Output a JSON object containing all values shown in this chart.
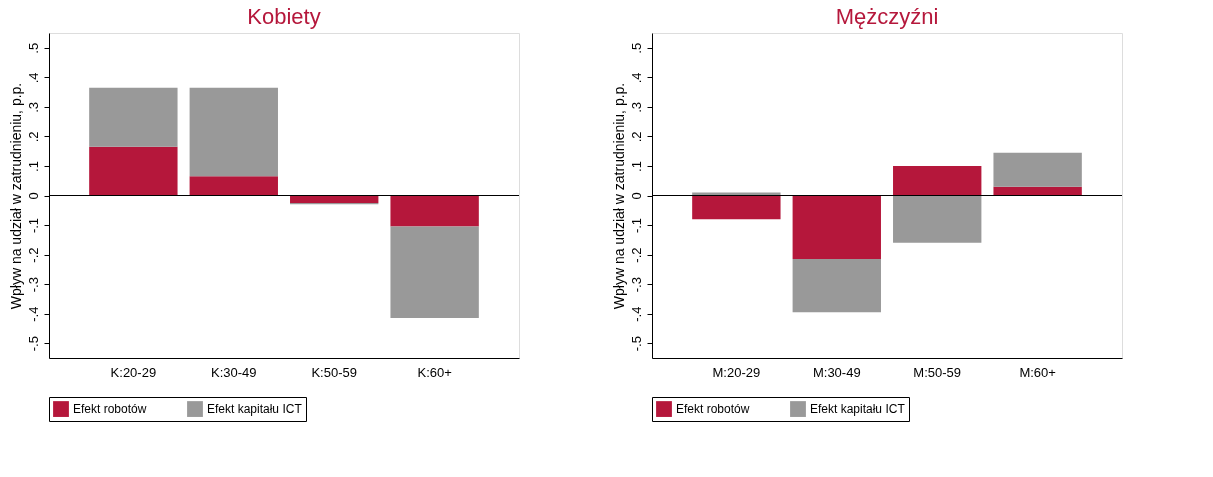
{
  "chart_data": [
    {
      "type": "bar",
      "stacked": true,
      "title": "Kobiety",
      "ylabel": "Wpływ na udział w zatrudnieniu, p.p.",
      "categories": [
        "K:20-29",
        "K:30-49",
        "K:50-59",
        "K:60+"
      ],
      "series": [
        {
          "name": "Efekt robotów",
          "color": "#b5173b",
          "values": [
            0.165,
            0.065,
            -0.025,
            -0.105
          ]
        },
        {
          "name": "Efekt kapitału ICT",
          "color": "#999999",
          "values": [
            0.2,
            0.3,
            -0.005,
            -0.31
          ]
        }
      ],
      "ylim": [
        -0.55,
        0.55
      ],
      "yticks": [
        {
          "value": -0.5,
          "label": "-.5"
        },
        {
          "value": -0.4,
          "label": "-.4"
        },
        {
          "value": -0.3,
          "label": "-.3"
        },
        {
          "value": -0.2,
          "label": "-.2"
        },
        {
          "value": -0.1,
          "label": "-.1"
        },
        0,
        {
          "value": 0.1,
          "label": ".1"
        },
        {
          "value": 0.2,
          "label": ".2"
        },
        {
          "value": 0.3,
          "label": ".3"
        },
        {
          "value": 0.4,
          "label": ".4"
        },
        {
          "value": 0.5,
          "label": ".5"
        }
      ],
      "ref_lines": [
        {
          "axis": "y",
          "value": 0,
          "color": "#000000"
        }
      ],
      "grid": false,
      "legend": "bottom"
    },
    {
      "type": "bar",
      "stacked": true,
      "title": "Mężczyźni",
      "ylabel": "Wpływ na udział w zatrudnieniu, p.p.",
      "categories": [
        "M:20-29",
        "M:30-49",
        "M:50-59",
        "M:60+"
      ],
      "series": [
        {
          "name": "Efekt robotów",
          "color": "#b5173b",
          "values": [
            -0.08,
            -0.215,
            0.1,
            0.03
          ]
        },
        {
          "name": "Efekt kapitału ICT",
          "color": "#999999",
          "values": [
            0.01,
            -0.18,
            -0.16,
            0.115
          ]
        }
      ],
      "ylim": [
        -0.55,
        0.55
      ],
      "yticks": [
        {
          "value": -0.5,
          "label": "-.5"
        },
        {
          "value": -0.4,
          "label": "-.4"
        },
        {
          "value": -0.3,
          "label": "-.3"
        },
        {
          "value": -0.2,
          "label": "-.2"
        },
        {
          "value": -0.1,
          "label": "-.1"
        },
        0,
        {
          "value": 0.1,
          "label": ".1"
        },
        {
          "value": 0.2,
          "label": ".2"
        },
        {
          "value": 0.3,
          "label": ".3"
        },
        {
          "value": 0.4,
          "label": ".4"
        },
        {
          "value": 0.5,
          "label": ".5"
        }
      ],
      "ref_lines": [
        {
          "axis": "y",
          "value": 0,
          "color": "#000000"
        }
      ],
      "grid": false,
      "legend": "bottom"
    }
  ]
}
